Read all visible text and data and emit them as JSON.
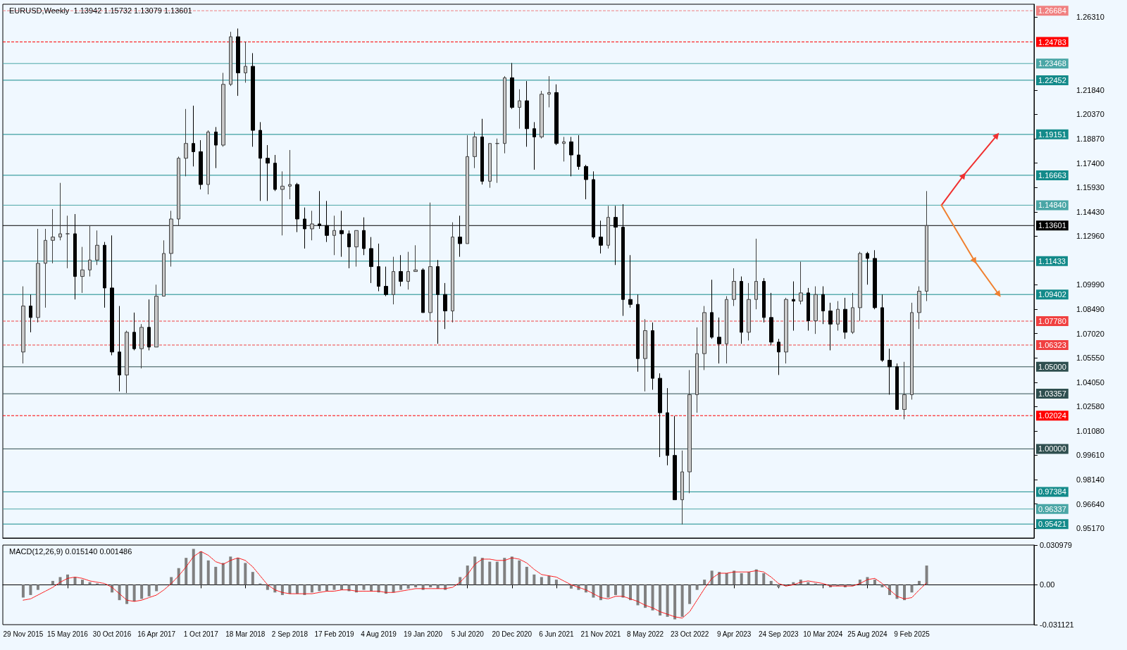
{
  "chart_data": [
    {
      "type": "candlestick",
      "title": "EURUSD,Weekly  1.13942 1.15732 1.13079 1.13601",
      "tick_labels": "y",
      "x": [
        "2015-11-29",
        "2015-12-27",
        "2016-01-24",
        "2016-02-21",
        "2016-03-20",
        "2016-04-17",
        "2016-05-15",
        "2016-06-12",
        "2016-07-10",
        "2016-08-07",
        "2016-09-04",
        "2016-10-02",
        "2016-10-30",
        "2016-11-27",
        "2016-12-25",
        "2017-01-22",
        "2017-02-19",
        "2017-03-19",
        "2017-04-16",
        "2017-05-14",
        "2017-06-11",
        "2017-07-09",
        "2017-08-06",
        "2017-09-03",
        "2017-10-01",
        "2017-10-29",
        "2017-11-26",
        "2017-12-24",
        "2018-01-21",
        "2018-02-18",
        "2018-03-18",
        "2018-04-15",
        "2018-05-13",
        "2018-06-10",
        "2018-07-08",
        "2018-08-05",
        "2018-09-02",
        "2018-09-30",
        "2018-10-28",
        "2018-11-25",
        "2018-12-23",
        "2019-01-20",
        "2019-02-17",
        "2019-03-17",
        "2019-04-14",
        "2019-05-12",
        "2019-06-09",
        "2019-07-07",
        "2019-08-04",
        "2019-09-01",
        "2019-09-29",
        "2019-10-27",
        "2019-11-24",
        "2019-12-22",
        "2020-01-19",
        "2020-02-16",
        "2020-03-15",
        "2020-04-12",
        "2020-05-10",
        "2020-06-07",
        "2020-07-05",
        "2020-08-02",
        "2020-08-30",
        "2020-09-27",
        "2020-10-25",
        "2020-11-22",
        "2020-12-20",
        "2021-01-17",
        "2021-02-14",
        "2021-03-14",
        "2021-04-11",
        "2021-05-09",
        "2021-06-06",
        "2021-07-04",
        "2021-08-01",
        "2021-08-29",
        "2021-09-26",
        "2021-10-24",
        "2021-11-21",
        "2021-12-19",
        "2022-01-16",
        "2022-02-13",
        "2022-03-13",
        "2022-04-10",
        "2022-05-08",
        "2022-06-05",
        "2022-07-03",
        "2022-07-31",
        "2022-08-28",
        "2022-09-25",
        "2022-10-23",
        "2022-11-20",
        "2022-12-18",
        "2023-01-15",
        "2023-02-12",
        "2023-03-12",
        "2023-04-09",
        "2023-05-07",
        "2023-06-04",
        "2023-07-02",
        "2023-07-30",
        "2023-08-27",
        "2023-09-24",
        "2023-10-22",
        "2023-11-19",
        "2023-12-17",
        "2024-01-14",
        "2024-02-11",
        "2024-03-10",
        "2024-04-07",
        "2024-05-05",
        "2024-06-02",
        "2024-06-30",
        "2024-07-28",
        "2024-08-25",
        "2024-09-22",
        "2024-10-20",
        "2024-11-17",
        "2024-12-15",
        "2025-01-12",
        "2025-02-09",
        "2025-03-09",
        "2025-04-06"
      ],
      "ohlc": [
        [
          1.059,
          1.099,
          1.052,
          1.087
        ],
        [
          1.087,
          1.094,
          1.071,
          1.08
        ],
        [
          1.08,
          1.134,
          1.077,
          1.113
        ],
        [
          1.113,
          1.134,
          1.086,
          1.127
        ],
        [
          1.127,
          1.146,
          1.113,
          1.129
        ],
        [
          1.129,
          1.162,
          1.127,
          1.131
        ],
        [
          1.131,
          1.142,
          1.11,
          1.131
        ],
        [
          1.131,
          1.143,
          1.091,
          1.105
        ],
        [
          1.105,
          1.123,
          1.095,
          1.109
        ],
        [
          1.109,
          1.136,
          1.105,
          1.115
        ],
        [
          1.115,
          1.133,
          1.112,
          1.124
        ],
        [
          1.124,
          1.126,
          1.086,
          1.098
        ],
        [
          1.098,
          1.13,
          1.057,
          1.059
        ],
        [
          1.059,
          1.087,
          1.035,
          1.045
        ],
        [
          1.045,
          1.072,
          1.034,
          1.071
        ],
        [
          1.071,
          1.083,
          1.06,
          1.061
        ],
        [
          1.061,
          1.076,
          1.049,
          1.074
        ],
        [
          1.074,
          1.091,
          1.06,
          1.062
        ],
        [
          1.062,
          1.1,
          1.062,
          1.093
        ],
        [
          1.093,
          1.127,
          1.093,
          1.119
        ],
        [
          1.119,
          1.145,
          1.111,
          1.14
        ],
        [
          1.14,
          1.178,
          1.136,
          1.177
        ],
        [
          1.177,
          1.207,
          1.166,
          1.186
        ],
        [
          1.186,
          1.209,
          1.172,
          1.181
        ],
        [
          1.181,
          1.188,
          1.158,
          1.161
        ],
        [
          1.161,
          1.194,
          1.155,
          1.193
        ],
        [
          1.193,
          1.196,
          1.171,
          1.185
        ],
        [
          1.185,
          1.229,
          1.184,
          1.222
        ],
        [
          1.222,
          1.254,
          1.221,
          1.251
        ],
        [
          1.251,
          1.256,
          1.215,
          1.229
        ],
        [
          1.229,
          1.248,
          1.223,
          1.233
        ],
        [
          1.233,
          1.241,
          1.184,
          1.194
        ],
        [
          1.194,
          1.199,
          1.151,
          1.177
        ],
        [
          1.177,
          1.185,
          1.151,
          1.174
        ],
        [
          1.174,
          1.179,
          1.157,
          1.158
        ],
        [
          1.158,
          1.169,
          1.13,
          1.16
        ],
        [
          1.16,
          1.182,
          1.152,
          1.161
        ],
        [
          1.161,
          1.162,
          1.132,
          1.14
        ],
        [
          1.14,
          1.147,
          1.122,
          1.134
        ],
        [
          1.134,
          1.145,
          1.127,
          1.137
        ],
        [
          1.137,
          1.157,
          1.134,
          1.136
        ],
        [
          1.136,
          1.151,
          1.126,
          1.13
        ],
        [
          1.13,
          1.142,
          1.118,
          1.133
        ],
        [
          1.133,
          1.145,
          1.117,
          1.131
        ],
        [
          1.131,
          1.133,
          1.11,
          1.123
        ],
        [
          1.123,
          1.133,
          1.111,
          1.133
        ],
        [
          1.133,
          1.141,
          1.118,
          1.122
        ],
        [
          1.122,
          1.129,
          1.101,
          1.111
        ],
        [
          1.111,
          1.125,
          1.096,
          1.099
        ],
        [
          1.099,
          1.111,
          1.093,
          1.094
        ],
        [
          1.094,
          1.117,
          1.088,
          1.108
        ],
        [
          1.108,
          1.118,
          1.099,
          1.102
        ],
        [
          1.102,
          1.12,
          1.097,
          1.108
        ],
        [
          1.108,
          1.124,
          1.108,
          1.109
        ],
        [
          1.109,
          1.11,
          1.083,
          1.083
        ],
        [
          1.083,
          1.15,
          1.078,
          1.111
        ],
        [
          1.111,
          1.115,
          1.064,
          1.094
        ],
        [
          1.094,
          1.101,
          1.073,
          1.084
        ],
        [
          1.084,
          1.138,
          1.077,
          1.129
        ],
        [
          1.129,
          1.142,
          1.117,
          1.125
        ],
        [
          1.125,
          1.191,
          1.125,
          1.178
        ],
        [
          1.178,
          1.193,
          1.171,
          1.19
        ],
        [
          1.19,
          1.201,
          1.161,
          1.163
        ],
        [
          1.163,
          1.186,
          1.159,
          1.186
        ],
        [
          1.186,
          1.189,
          1.162,
          1.186
        ],
        [
          1.186,
          1.227,
          1.18,
          1.226
        ],
        [
          1.226,
          1.235,
          1.207,
          1.208
        ],
        [
          1.208,
          1.219,
          1.195,
          1.212
        ],
        [
          1.212,
          1.224,
          1.184,
          1.195
        ],
        [
          1.195,
          1.199,
          1.17,
          1.19
        ],
        [
          1.19,
          1.218,
          1.189,
          1.216
        ],
        [
          1.216,
          1.227,
          1.208,
          1.217
        ],
        [
          1.217,
          1.222,
          1.185,
          1.186
        ],
        [
          1.186,
          1.19,
          1.175,
          1.187
        ],
        [
          1.187,
          1.19,
          1.166,
          1.179
        ],
        [
          1.179,
          1.191,
          1.17,
          1.172
        ],
        [
          1.172,
          1.173,
          1.152,
          1.164
        ],
        [
          1.164,
          1.169,
          1.128,
          1.129
        ],
        [
          1.129,
          1.139,
          1.119,
          1.124
        ],
        [
          1.124,
          1.148,
          1.122,
          1.141
        ],
        [
          1.141,
          1.148,
          1.112,
          1.135
        ],
        [
          1.135,
          1.149,
          1.081,
          1.091
        ],
        [
          1.091,
          1.118,
          1.086,
          1.088
        ],
        [
          1.088,
          1.094,
          1.047,
          1.055
        ],
        [
          1.055,
          1.079,
          1.035,
          1.072
        ],
        [
          1.072,
          1.077,
          1.036,
          1.043
        ],
        [
          1.043,
          1.046,
          0.995,
          1.022
        ],
        [
          1.022,
          1.037,
          0.99,
          0.996
        ],
        [
          0.996,
          1.02,
          0.969,
          0.969
        ],
        [
          0.969,
          0.999,
          0.954,
          0.986
        ],
        [
          0.986,
          1.048,
          0.973,
          1.033
        ],
        [
          1.033,
          1.074,
          1.022,
          1.058
        ],
        [
          1.058,
          1.087,
          1.048,
          1.083
        ],
        [
          1.083,
          1.103,
          1.067,
          1.068
        ],
        [
          1.068,
          1.08,
          1.052,
          1.064
        ],
        [
          1.064,
          1.093,
          1.052,
          1.091
        ],
        [
          1.091,
          1.11,
          1.087,
          1.102
        ],
        [
          1.102,
          1.105,
          1.064,
          1.071
        ],
        [
          1.071,
          1.101,
          1.066,
          1.091
        ],
        [
          1.091,
          1.128,
          1.085,
          1.102
        ],
        [
          1.102,
          1.104,
          1.077,
          1.08
        ],
        [
          1.08,
          1.095,
          1.063,
          1.065
        ],
        [
          1.065,
          1.067,
          1.045,
          1.059
        ],
        [
          1.059,
          1.092,
          1.052,
          1.091
        ],
        [
          1.091,
          1.102,
          1.072,
          1.09
        ],
        [
          1.09,
          1.114,
          1.088,
          1.095
        ],
        [
          1.095,
          1.098,
          1.072,
          1.078
        ],
        [
          1.078,
          1.099,
          1.07,
          1.094
        ],
        [
          1.094,
          1.099,
          1.076,
          1.084
        ],
        [
          1.084,
          1.089,
          1.06,
          1.076
        ],
        [
          1.076,
          1.09,
          1.072,
          1.085
        ],
        [
          1.085,
          1.092,
          1.067,
          1.071
        ],
        [
          1.071,
          1.095,
          1.07,
          1.086
        ],
        [
          1.086,
          1.12,
          1.078,
          1.119
        ],
        [
          1.119,
          1.12,
          1.1,
          1.116
        ],
        [
          1.116,
          1.121,
          1.085,
          1.086
        ],
        [
          1.086,
          1.094,
          1.053,
          1.054
        ],
        [
          1.054,
          1.061,
          1.033,
          1.05
        ],
        [
          1.05,
          1.052,
          1.024,
          1.024
        ],
        [
          1.024,
          1.053,
          1.018,
          1.033
        ],
        [
          1.033,
          1.089,
          1.03,
          1.083
        ],
        [
          1.083,
          1.099,
          1.073,
          1.096
        ],
        [
          1.096,
          1.157,
          1.09,
          1.136
        ]
      ],
      "xlim": [
        "2015-09-13",
        "2026-05-17"
      ],
      "ylim": [
        0.9457,
        1.2708
      ],
      "yticks": [
        {
          "value": 1.2631,
          "label": "1.26310"
        },
        {
          "value": 1.2184,
          "label": "1.21840"
        },
        {
          "value": 1.2037,
          "label": "1.20370"
        },
        {
          "value": 1.1887,
          "label": "1.18870"
        },
        {
          "value": 1.174,
          "label": "1.17400"
        },
        {
          "value": 1.1593,
          "label": "1.15930"
        },
        {
          "value": 1.1443,
          "label": "1.14430"
        },
        {
          "value": 1.1296,
          "label": "1.12960"
        },
        {
          "value": 1.0999,
          "label": "1.09990"
        },
        {
          "value": 1.0849,
          "label": "1.08490"
        },
        {
          "value": 1.0702,
          "label": "1.07020"
        },
        {
          "value": 1.0555,
          "label": "1.05550"
        },
        {
          "value": 1.0405,
          "label": "1.04050"
        },
        {
          "value": 1.0258,
          "label": "1.02580"
        },
        {
          "value": 1.0108,
          "label": "1.01080"
        },
        {
          "value": 0.9961,
          "label": "0.99610"
        },
        {
          "value": 0.9814,
          "label": "0.98140"
        },
        {
          "value": 0.9664,
          "label": "0.96640"
        },
        {
          "value": 0.9517,
          "label": "0.95170"
        }
      ],
      "ref_lines": [
        {
          "axis": "y",
          "value": 1.26684,
          "label": "1.26684",
          "color": "#f08080",
          "line_style": "dashed"
        },
        {
          "axis": "y",
          "value": 1.24783,
          "label": "1.24783",
          "color": "#ff0000",
          "line_style": "dashed"
        },
        {
          "axis": "y",
          "value": 1.23468,
          "label": "1.23468",
          "color": "#4aa6a6",
          "line_style": "solid"
        },
        {
          "axis": "y",
          "value": 1.22452,
          "label": "1.22452",
          "color": "#138a8a",
          "line_style": "solid"
        },
        {
          "axis": "y",
          "value": 1.19151,
          "label": "1.19151",
          "color": "#138a8a",
          "line_style": "solid"
        },
        {
          "axis": "y",
          "value": 1.16663,
          "label": "1.16663",
          "color": "#138a8a",
          "line_style": "solid"
        },
        {
          "axis": "y",
          "value": 1.1484,
          "label": "1.14840",
          "color": "#4aa6a6",
          "line_style": "solid"
        },
        {
          "axis": "y",
          "value": 1.13601,
          "label": "1.13601",
          "color": "#000000",
          "line_style": "solid"
        },
        {
          "axis": "y",
          "value": 1.11433,
          "label": "1.11433",
          "color": "#138a8a",
          "line_style": "solid"
        },
        {
          "axis": "y",
          "value": 1.09402,
          "label": "1.09402",
          "color": "#138a8a",
          "line_style": "solid"
        },
        {
          "axis": "y",
          "value": 1.0778,
          "label": "1.07780",
          "color": "#f04040",
          "line_style": "dashed"
        },
        {
          "axis": "y",
          "value": 1.06323,
          "label": "1.06323",
          "color": "#f04040",
          "line_style": "dashed"
        },
        {
          "axis": "y",
          "value": 1.05,
          "label": "1.05000",
          "color": "#2f4f4f",
          "line_style": "solid"
        },
        {
          "axis": "y",
          "value": 1.03357,
          "label": "1.03357",
          "color": "#2f4f4f",
          "line_style": "solid"
        },
        {
          "axis": "y",
          "value": 1.02024,
          "label": "1.02024",
          "color": "#ff0000",
          "line_style": "dashed"
        },
        {
          "axis": "y",
          "value": 1.0,
          "label": "1.00000",
          "color": "#2f4f4f",
          "line_style": "solid"
        },
        {
          "axis": "y",
          "value": 0.97384,
          "label": "0.97384",
          "color": "#138a8a",
          "line_style": "solid"
        },
        {
          "axis": "y",
          "value": 0.96337,
          "label": "0.96337",
          "color": "#4aa6a6",
          "line_style": "solid"
        },
        {
          "axis": "y",
          "value": 0.95421,
          "label": "0.95421",
          "color": "#138a8a",
          "line_style": "solid"
        }
      ],
      "series": [
        {
          "type": "line",
          "color": "#f03030",
          "marker": "triangle",
          "x": [
            "2025-06-01",
            "2025-08-24",
            "2025-12-28"
          ],
          "values": [
            1.1484,
            1.1666,
            1.191
          ]
        },
        {
          "type": "line",
          "color": "#f08030",
          "marker": "triangle",
          "x": [
            "2025-06-01",
            "2025-10-05",
            "2026-01-04"
          ],
          "values": [
            1.1484,
            1.1143,
            1.094
          ]
        }
      ]
    },
    {
      "type": "bar",
      "title": "MACD(12,26,9) 0.015140 0.001486",
      "x": [
        "2015-11-29",
        "2015-12-27",
        "2016-01-24",
        "2016-02-21",
        "2016-03-20",
        "2016-04-17",
        "2016-05-15",
        "2016-06-12",
        "2016-07-10",
        "2016-08-07",
        "2016-09-04",
        "2016-10-02",
        "2016-10-30",
        "2016-11-27",
        "2016-12-25",
        "2017-01-22",
        "2017-02-19",
        "2017-03-19",
        "2017-04-16",
        "2017-05-14",
        "2017-06-11",
        "2017-07-09",
        "2017-08-06",
        "2017-09-03",
        "2017-10-01",
        "2017-10-29",
        "2017-11-26",
        "2017-12-24",
        "2018-01-21",
        "2018-02-18",
        "2018-03-18",
        "2018-04-15",
        "2018-05-13",
        "2018-06-10",
        "2018-07-08",
        "2018-08-05",
        "2018-09-02",
        "2018-09-30",
        "2018-10-28",
        "2018-11-25",
        "2018-12-23",
        "2019-01-20",
        "2019-02-17",
        "2019-03-17",
        "2019-04-14",
        "2019-05-12",
        "2019-06-09",
        "2019-07-07",
        "2019-08-04",
        "2019-09-01",
        "2019-09-29",
        "2019-10-27",
        "2019-11-24",
        "2019-12-22",
        "2020-01-19",
        "2020-02-16",
        "2020-03-15",
        "2020-04-12",
        "2020-05-10",
        "2020-06-07",
        "2020-07-05",
        "2020-08-02",
        "2020-08-30",
        "2020-09-27",
        "2020-10-25",
        "2020-11-22",
        "2020-12-20",
        "2021-01-17",
        "2021-02-14",
        "2021-03-14",
        "2021-04-11",
        "2021-05-09",
        "2021-06-06",
        "2021-07-04",
        "2021-08-01",
        "2021-08-29",
        "2021-09-26",
        "2021-10-24",
        "2021-11-21",
        "2021-12-19",
        "2022-01-16",
        "2022-02-13",
        "2022-03-13",
        "2022-04-10",
        "2022-05-08",
        "2022-06-05",
        "2022-07-03",
        "2022-07-31",
        "2022-08-28",
        "2022-09-25",
        "2022-10-23",
        "2022-11-20",
        "2022-12-18",
        "2023-01-15",
        "2023-02-12",
        "2023-03-12",
        "2023-04-09",
        "2023-05-07",
        "2023-06-04",
        "2023-07-02",
        "2023-07-30",
        "2023-08-27",
        "2023-09-24",
        "2023-10-22",
        "2023-11-19",
        "2023-12-17",
        "2024-01-14",
        "2024-02-11",
        "2024-03-10",
        "2024-04-07",
        "2024-05-05",
        "2024-06-02",
        "2024-06-30",
        "2024-07-28",
        "2024-08-25",
        "2024-09-22",
        "2024-10-20",
        "2024-11-17",
        "2024-12-15",
        "2025-01-12",
        "2025-02-09",
        "2025-03-09",
        "2025-04-06"
      ],
      "xlim": [
        "2015-09-13",
        "2026-05-17"
      ],
      "xticks": [
        {
          "value": "2015-11-29",
          "label": "29 Nov 2015"
        },
        {
          "value": "2016-05-15",
          "label": "15 May 2016"
        },
        {
          "value": "2016-10-30",
          "label": "30 Oct 2016"
        },
        {
          "value": "2017-04-16",
          "label": "16 Apr 2017"
        },
        {
          "value": "2017-10-01",
          "label": "1 Oct 2017"
        },
        {
          "value": "2018-03-18",
          "label": "18 Mar 2018"
        },
        {
          "value": "2018-09-02",
          "label": "2 Sep 2018"
        },
        {
          "value": "2019-02-17",
          "label": "17 Feb 2019"
        },
        {
          "value": "2019-08-04",
          "label": "4 Aug 2019"
        },
        {
          "value": "2020-01-19",
          "label": "19 Jan 2020"
        },
        {
          "value": "2020-07-05",
          "label": "5 Jul 2020"
        },
        {
          "value": "2020-12-20",
          "label": "20 Dec 2020"
        },
        {
          "value": "2021-06-06",
          "label": "6 Jun 2021"
        },
        {
          "value": "2021-11-21",
          "label": "21 Nov 2021"
        },
        {
          "value": "2022-05-08",
          "label": "8 May 2022"
        },
        {
          "value": "2022-10-23",
          "label": "23 Oct 2022"
        },
        {
          "value": "2023-04-09",
          "label": "9 Apr 2023"
        },
        {
          "value": "2023-09-24",
          "label": "24 Sep 2023"
        },
        {
          "value": "2024-03-10",
          "label": "10 Mar 2024"
        },
        {
          "value": "2024-08-25",
          "label": "25 Aug 2024"
        },
        {
          "value": "2025-02-09",
          "label": "9 Feb 2025"
        }
      ],
      "ylim": [
        -0.031121,
        0.030979
      ],
      "yticks": [
        0.030979,
        {
          "value": 0,
          "label": "0.00"
        },
        -0.031121
      ],
      "series": [
        {
          "type": "bar",
          "color": "#808080",
          "values": [
            -0.01,
            -0.008,
            -0.004,
            0.0,
            0.003,
            0.006,
            0.008,
            0.006,
            0.004,
            0.002,
            0.001,
            0.0,
            -0.006,
            -0.012,
            -0.015,
            -0.013,
            -0.011,
            -0.009,
            -0.005,
            0.0,
            0.006,
            0.013,
            0.021,
            0.028,
            0.026,
            0.019,
            0.014,
            0.017,
            0.022,
            0.021,
            0.017,
            0.01,
            0.001,
            -0.004,
            -0.006,
            -0.008,
            -0.007,
            -0.007,
            -0.008,
            -0.006,
            -0.005,
            -0.005,
            -0.004,
            -0.004,
            -0.005,
            -0.006,
            -0.004,
            -0.005,
            -0.006,
            -0.007,
            -0.006,
            -0.004,
            -0.003,
            -0.002,
            -0.004,
            -0.002,
            -0.003,
            -0.004,
            0.0,
            0.006,
            0.015,
            0.022,
            0.021,
            0.018,
            0.018,
            0.021,
            0.022,
            0.019,
            0.014,
            0.008,
            0.006,
            0.007,
            0.004,
            0.0,
            -0.003,
            -0.004,
            -0.006,
            -0.01,
            -0.012,
            -0.01,
            -0.008,
            -0.01,
            -0.012,
            -0.016,
            -0.018,
            -0.02,
            -0.024,
            -0.025,
            -0.027,
            -0.025,
            -0.015,
            -0.004,
            0.004,
            0.011,
            0.01,
            0.009,
            0.011,
            0.009,
            0.01,
            0.012,
            0.009,
            0.003,
            -0.002,
            -0.001,
            0.002,
            0.004,
            0.002,
            0.001,
            0.0,
            -0.002,
            -0.001,
            -0.002,
            -0.001,
            0.004,
            0.006,
            0.004,
            -0.002,
            -0.008,
            -0.011,
            -0.012,
            -0.006,
            0.003,
            0.015
          ]
        },
        {
          "type": "line",
          "color": "#ff0000",
          "line_style": "dotted",
          "values": [
            -0.012,
            -0.011,
            -0.008,
            -0.005,
            -0.002,
            0.002,
            0.005,
            0.006,
            0.005,
            0.003,
            0.002,
            0.001,
            -0.002,
            -0.007,
            -0.012,
            -0.013,
            -0.012,
            -0.01,
            -0.008,
            -0.004,
            0.001,
            0.007,
            0.014,
            0.022,
            0.026,
            0.023,
            0.018,
            0.016,
            0.019,
            0.021,
            0.019,
            0.014,
            0.007,
            0.0,
            -0.004,
            -0.006,
            -0.007,
            -0.007,
            -0.007,
            -0.007,
            -0.006,
            -0.005,
            -0.005,
            -0.004,
            -0.004,
            -0.005,
            -0.005,
            -0.005,
            -0.005,
            -0.006,
            -0.006,
            -0.005,
            -0.004,
            -0.003,
            -0.003,
            -0.003,
            -0.003,
            -0.003,
            -0.002,
            0.002,
            0.008,
            0.016,
            0.02,
            0.02,
            0.019,
            0.019,
            0.021,
            0.02,
            0.017,
            0.012,
            0.008,
            0.007,
            0.006,
            0.003,
            0.0,
            -0.002,
            -0.004,
            -0.007,
            -0.01,
            -0.011,
            -0.009,
            -0.009,
            -0.011,
            -0.013,
            -0.016,
            -0.018,
            -0.021,
            -0.023,
            -0.025,
            -0.026,
            -0.021,
            -0.012,
            -0.003,
            0.005,
            0.009,
            0.009,
            0.01,
            0.01,
            0.01,
            0.011,
            0.01,
            0.006,
            0.001,
            -0.001,
            0.0,
            0.002,
            0.003,
            0.002,
            0.001,
            -0.001,
            -0.001,
            -0.001,
            -0.001,
            0.001,
            0.004,
            0.005,
            0.001,
            -0.004,
            -0.009,
            -0.011,
            -0.01,
            -0.004,
            0.0015
          ]
        }
      ]
    }
  ]
}
